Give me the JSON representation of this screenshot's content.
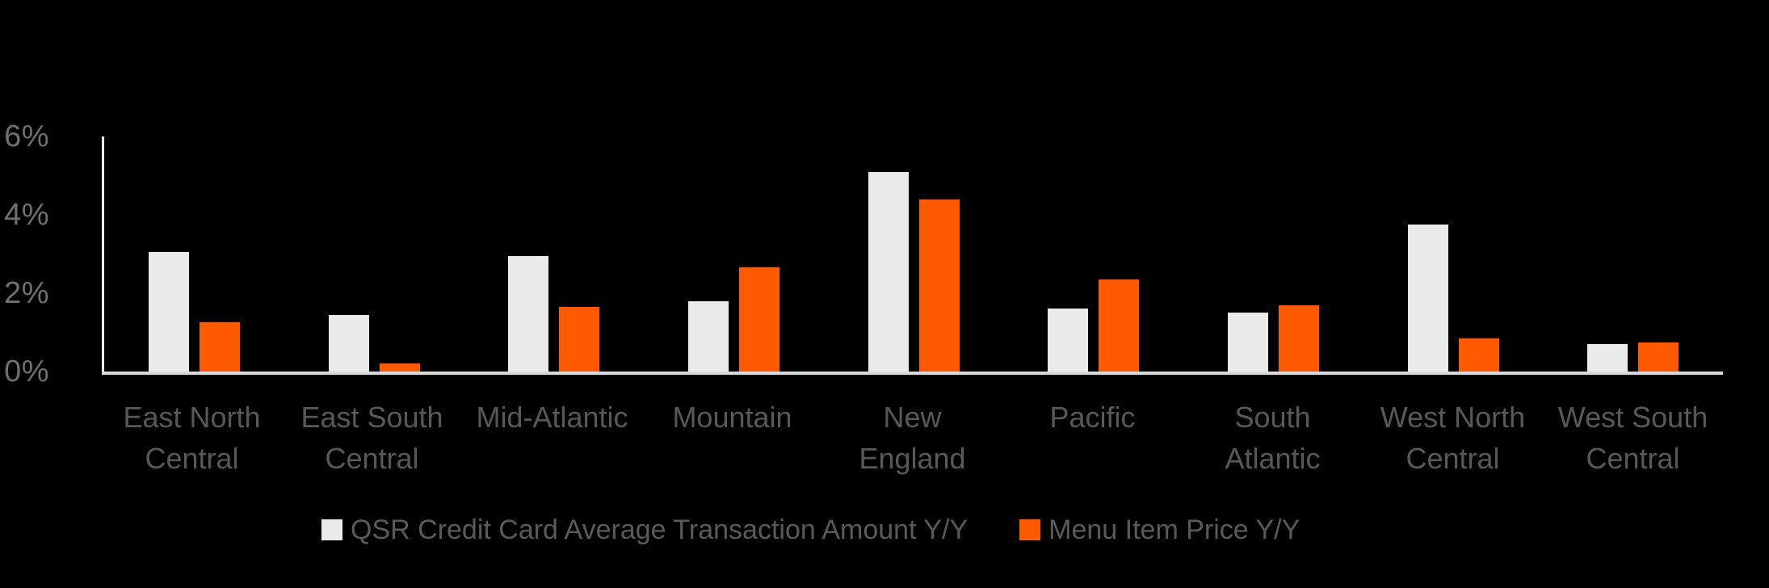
{
  "chart_data": {
    "type": "bar",
    "title": "",
    "categories": [
      "East North Central",
      "East South Central",
      "Mid-Atlantic",
      "Mountain",
      "New England",
      "Pacific",
      "South Atlantic",
      "West North Central",
      "West South Central"
    ],
    "category_label_lines": [
      [
        "East North",
        "Central"
      ],
      [
        "East South",
        "Central"
      ],
      [
        "Mid-Atlantic"
      ],
      [
        "Mountain"
      ],
      [
        "New",
        "England"
      ],
      [
        "Pacific"
      ],
      [
        "South",
        "Atlantic"
      ],
      [
        "West North",
        "Central"
      ],
      [
        "West South",
        "Central"
      ]
    ],
    "series": [
      {
        "name": "QSR Credit Card Average Transaction Amount Y/Y",
        "color": "#eaeaea",
        "values": [
          3.05,
          1.45,
          2.95,
          1.8,
          5.1,
          1.6,
          1.5,
          3.75,
          0.7
        ]
      },
      {
        "name": "Menu Item Price Y/Y",
        "color": "#ff5a00",
        "values": [
          1.25,
          0.2,
          1.65,
          2.65,
          4.4,
          2.35,
          1.7,
          0.85,
          0.75
        ]
      }
    ],
    "y_axis": {
      "tick_labels": [
        "6%",
        "4%",
        "2%",
        "0%"
      ],
      "tick_values": [
        6,
        4,
        2,
        0
      ],
      "min": 0,
      "max": 6,
      "unit": "%"
    },
    "grid": false,
    "legend_position": "bottom",
    "colors": {
      "background": "#000000",
      "y_axis_line": "#ededed",
      "x_axis_line": "#d9d9d9",
      "y_tick_text": "#6f6f6f",
      "x_label_text": "#585858",
      "legend_text": "#5a5a5a"
    }
  }
}
